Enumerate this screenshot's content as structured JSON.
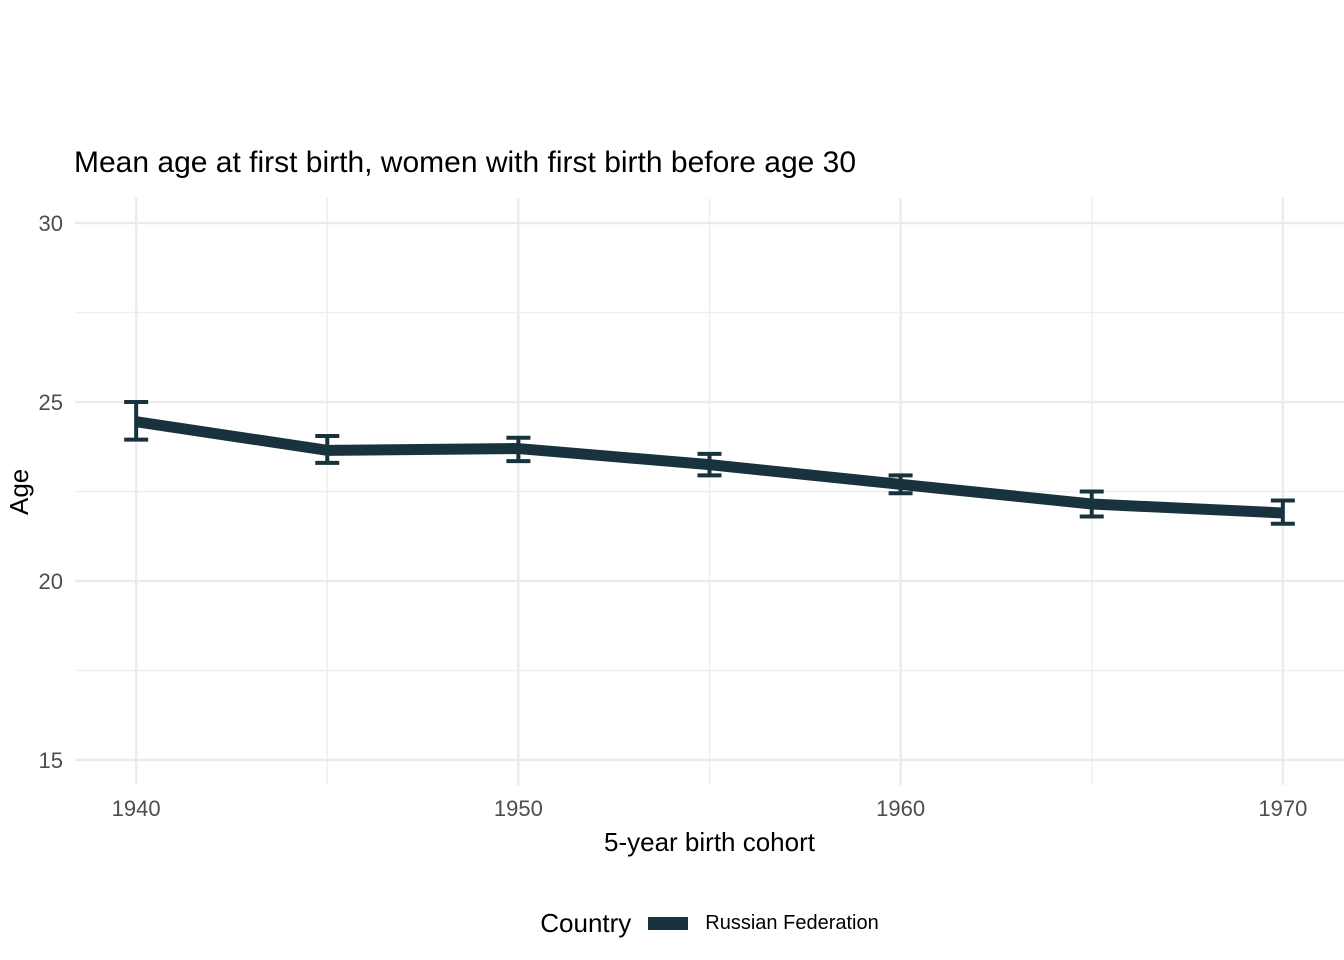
{
  "chart_data": {
    "type": "line",
    "title": "Mean age at first birth, women with first birth before age 30",
    "xlabel": "5-year birth cohort",
    "ylabel": "Age",
    "x": [
      1940,
      1945,
      1950,
      1955,
      1960,
      1965,
      1970
    ],
    "series": [
      {
        "name": "Russian Federation",
        "values": [
          24.45,
          23.65,
          23.7,
          23.25,
          22.7,
          22.15,
          21.9
        ],
        "ci_low": [
          23.95,
          23.3,
          23.35,
          22.95,
          22.45,
          21.8,
          21.6
        ],
        "ci_high": [
          25.0,
          24.05,
          24.0,
          23.55,
          22.95,
          22.5,
          22.25
        ]
      }
    ],
    "xticks": [
      1940,
      1950,
      1960,
      1970
    ],
    "xtick_labels": [
      "1940",
      "1950",
      "1960",
      "1970"
    ],
    "x_minor": [
      1945,
      1955,
      1965
    ],
    "yticks": [
      15,
      20,
      25,
      30
    ],
    "ytick_labels": [
      "15",
      "20",
      "25",
      "30"
    ],
    "y_minor": [
      17.5,
      22.5,
      27.5
    ],
    "xlim": [
      1938.4,
      1971.6
    ],
    "ylim": [
      14.3,
      30.7
    ],
    "grid": true,
    "legend_title": "Country",
    "legend_position": "bottom",
    "colors": {
      "line": "#18333d",
      "grid_major": "#ebebeb",
      "grid_minor": "#efefef",
      "axis_text": "#4d4d4d",
      "text": "#000000",
      "background": "#ffffff"
    }
  }
}
